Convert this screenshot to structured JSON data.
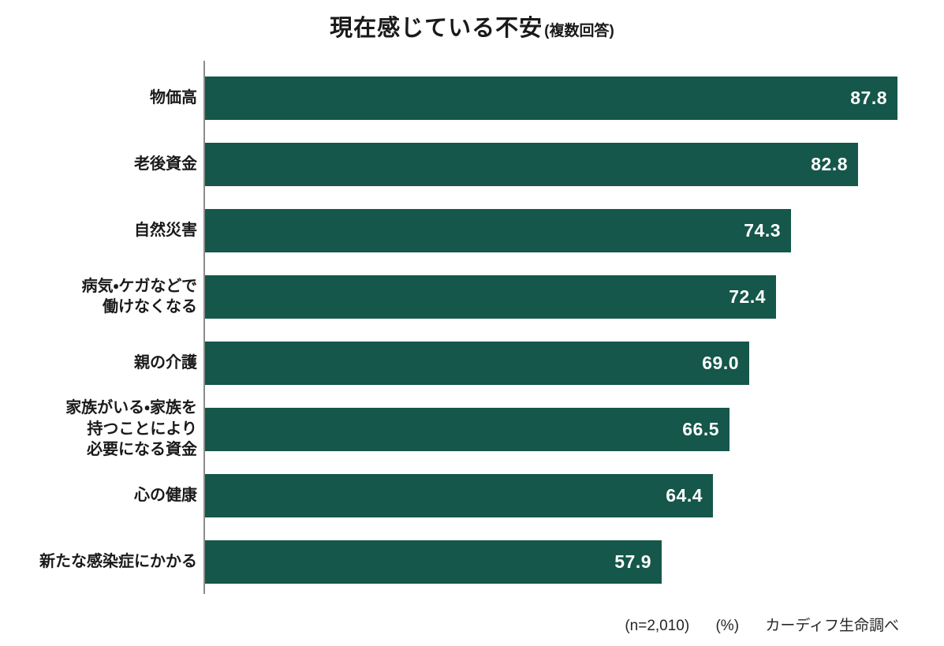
{
  "title": {
    "main": "現在感じている不安",
    "note": "(複数回答)"
  },
  "footer": {
    "sample_size": "(n=2,010)",
    "unit": "(%)",
    "source": "カーディフ生命調べ"
  },
  "chart_data": {
    "type": "bar",
    "orientation": "horizontal",
    "title": "現在感じている不安(複数回答)",
    "unit": "%",
    "sample_size": "n=2,010",
    "source": "カーディフ生命調べ",
    "categories": [
      "物価高",
      "老後資金",
      "自然災害",
      "病気・ケガなどで働けなくなる",
      "親の介護",
      "家族がいる・家族を持つことにより必要になる資金",
      "心の健康",
      "新たな感染症にかかる"
    ],
    "label_lines": [
      [
        "物価高"
      ],
      [
        "老後資金"
      ],
      [
        "自然災害"
      ],
      [
        "病気・ケガなどで",
        "働けなくなる"
      ],
      [
        "親の介護"
      ],
      [
        "家族がいる・家族を",
        "持つことにより",
        "必要になる資金"
      ],
      [
        "心の健康"
      ],
      [
        "新たな感染症にかかる"
      ]
    ],
    "values": [
      87.8,
      82.8,
      74.3,
      72.4,
      69.0,
      66.5,
      64.4,
      57.9
    ],
    "xlim": [
      0,
      100
    ],
    "grid": false,
    "legend": false,
    "bar_color": "#15574a",
    "axis_color": "#8c8c8c",
    "value_label_color": "#ffffff",
    "category_label_color": "#1a1a1a"
  }
}
